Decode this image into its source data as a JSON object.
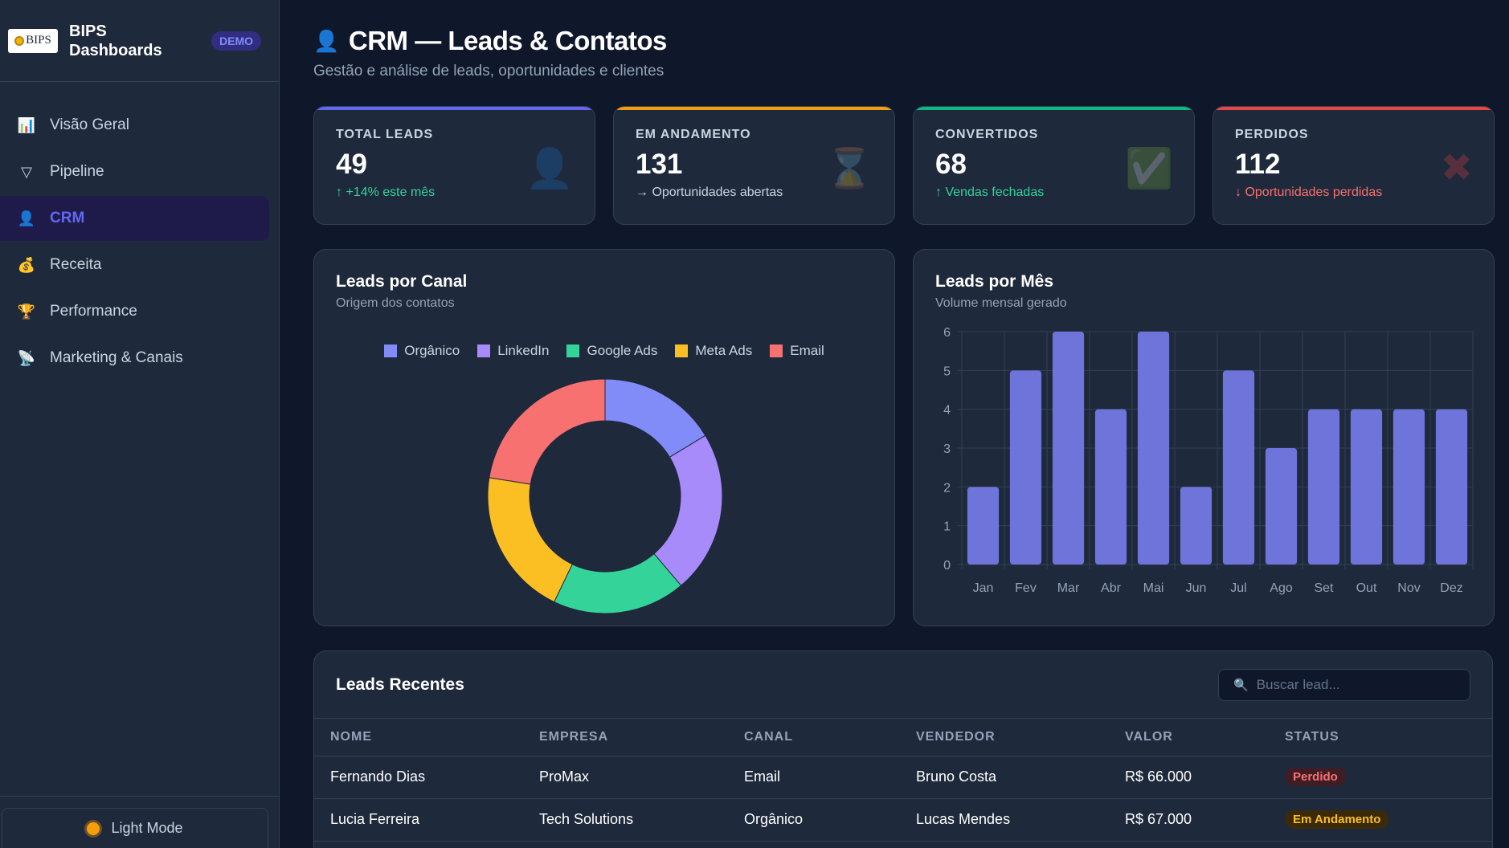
{
  "sidebar": {
    "brand_logo_text": "BIPS",
    "brand_name": "BIPS Dashboards",
    "badge": "DEMO",
    "items": [
      {
        "label": "Visão Geral",
        "icon": "bar-chart-icon"
      },
      {
        "label": "Pipeline",
        "icon": "funnel-icon"
      },
      {
        "label": "CRM",
        "icon": "person-icon",
        "active": true
      },
      {
        "label": "Receita",
        "icon": "money-bag-icon"
      },
      {
        "label": "Performance",
        "icon": "trophy-icon"
      },
      {
        "label": "Marketing & Canais",
        "icon": "satellite-icon"
      }
    ],
    "theme_toggle": "Light Mode"
  },
  "header": {
    "title": "CRM — Leads & Contatos",
    "subtitle": "Gestão e análise de leads, oportunidades e clientes"
  },
  "stats": [
    {
      "label": "TOTAL LEADS",
      "value": "49",
      "note": "↑ +14% este mês",
      "accent": "#6366f1",
      "note_color": "#34d399",
      "icon": "person-icon"
    },
    {
      "label": "EM ANDAMENTO",
      "value": "131",
      "note": "→ Oportunidades abertas",
      "accent": "#f59e0b",
      "note_color": "#cbd5e1",
      "icon": "hourglass-icon"
    },
    {
      "label": "CONVERTIDOS",
      "value": "68",
      "note": "↑ Vendas fechadas",
      "accent": "#10b981",
      "note_color": "#34d399",
      "icon": "check-icon"
    },
    {
      "label": "PERDIDOS",
      "value": "112",
      "note": "↓ Oportunidades perdidas",
      "accent": "#ef4444",
      "note_color": "#f87171",
      "icon": "cross-icon"
    }
  ],
  "donut": {
    "title": "Leads por Canal",
    "subtitle": "Origem dos contatos",
    "chart_data": {
      "type": "pie",
      "categories": [
        "Orgânico",
        "LinkedIn",
        "Google Ads",
        "Meta Ads",
        "Email"
      ],
      "values": [
        8,
        11,
        9,
        10,
        11
      ],
      "colors": [
        "#818cf8",
        "#a78bfa",
        "#34d399",
        "#fbbf24",
        "#f87171"
      ],
      "legend_position": "top"
    }
  },
  "bars": {
    "title": "Leads por Mês",
    "subtitle": "Volume mensal gerado",
    "chart_data": {
      "type": "bar",
      "categories": [
        "Jan",
        "Fev",
        "Mar",
        "Abr",
        "Mai",
        "Jun",
        "Jul",
        "Ago",
        "Set",
        "Out",
        "Nov",
        "Dez"
      ],
      "values": [
        2,
        5,
        6,
        4,
        6,
        2,
        5,
        3,
        4,
        4,
        4,
        4
      ],
      "ylim": [
        0,
        6
      ],
      "yticks": [
        "0",
        "1",
        "2",
        "3",
        "4",
        "5",
        "6"
      ],
      "color": "#6e74d9",
      "grid": true
    }
  },
  "table": {
    "title": "Leads Recentes",
    "search_placeholder": "Buscar lead...",
    "columns": [
      "NOME",
      "EMPRESA",
      "CANAL",
      "VENDEDOR",
      "VALOR",
      "STATUS"
    ],
    "rows": [
      {
        "nome": "Fernando Dias",
        "empresa": "ProMax",
        "canal": "Email",
        "vendedor": "Bruno Costa",
        "valor": "R$ 66.000",
        "status": "Perdido"
      },
      {
        "nome": "Lucia Ferreira",
        "empresa": "Tech Solutions",
        "canal": "Orgânico",
        "vendedor": "Lucas Mendes",
        "valor": "R$ 67.000",
        "status": "Em Andamento"
      }
    ]
  }
}
